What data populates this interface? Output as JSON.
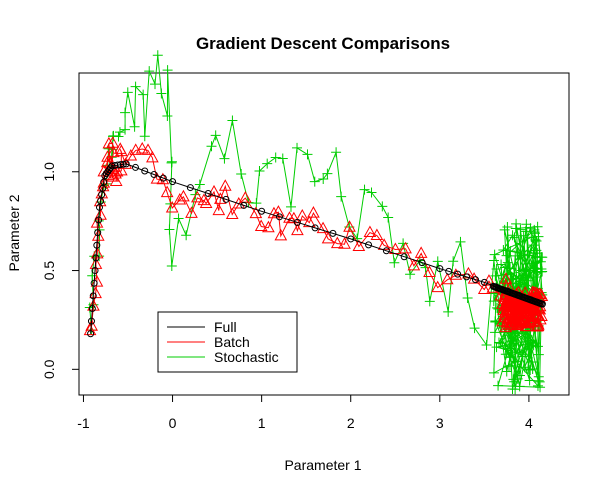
{
  "chart_data": {
    "type": "line",
    "title": "Gradient Descent Comparisons",
    "xlabel": "Parameter 1",
    "ylabel": "Parameter 2",
    "xlim": [
      -1.05,
      4.45
    ],
    "ylim": [
      -0.13,
      1.5
    ],
    "xticks": [
      -1,
      0,
      1,
      2,
      3,
      4
    ],
    "yticks": [
      0.0,
      0.5,
      1.0
    ],
    "ytick_labels": [
      "0.0",
      "0.5",
      "1.0"
    ],
    "legend": {
      "placement": "bottom-left"
    },
    "series": [
      {
        "name": "Full",
        "color": "#000000",
        "marker": "open-circle",
        "key_points": [
          {
            "x": -0.92,
            "y": 0.18
          },
          {
            "x": -0.87,
            "y": 0.5
          },
          {
            "x": -0.82,
            "y": 0.82
          },
          {
            "x": -0.76,
            "y": 0.98
          },
          {
            "x": -0.68,
            "y": 1.03
          },
          {
            "x": -0.52,
            "y": 1.04
          },
          {
            "x": 0.0,
            "y": 0.95
          },
          {
            "x": 1.0,
            "y": 0.8
          },
          {
            "x": 2.0,
            "y": 0.66
          },
          {
            "x": 3.0,
            "y": 0.51
          },
          {
            "x": 3.5,
            "y": 0.44
          },
          {
            "x": 4.15,
            "y": 0.33
          }
        ]
      },
      {
        "name": "Batch",
        "color": "#ff0000",
        "marker": "open-triangle",
        "key_points": [
          {
            "x": -0.92,
            "y": 0.18
          },
          {
            "x": -0.86,
            "y": 0.55
          },
          {
            "x": -0.8,
            "y": 0.82
          },
          {
            "x": -0.74,
            "y": 1.02
          },
          {
            "x": -0.69,
            "y": 1.12
          },
          {
            "x": -0.64,
            "y": 0.97
          },
          {
            "x": -0.57,
            "y": 1.08
          },
          {
            "x": -0.3,
            "y": 1.08
          },
          {
            "x": 0.0,
            "y": 0.88
          },
          {
            "x": 0.35,
            "y": 0.84
          },
          {
            "x": 0.6,
            "y": 0.86
          },
          {
            "x": 1.0,
            "y": 0.77
          },
          {
            "x": 1.3,
            "y": 0.7
          },
          {
            "x": 1.6,
            "y": 0.78
          },
          {
            "x": 2.0,
            "y": 0.65
          },
          {
            "x": 2.5,
            "y": 0.62
          },
          {
            "x": 3.0,
            "y": 0.48
          },
          {
            "x": 3.5,
            "y": 0.42
          },
          {
            "x": 3.8,
            "y": 0.38
          },
          {
            "x": 4.15,
            "y": 0.3
          }
        ]
      },
      {
        "name": "Stochastic",
        "color": "#00cd00",
        "marker": "plus",
        "key_points": [
          {
            "x": -0.92,
            "y": 0.18
          },
          {
            "x": -0.84,
            "y": 0.72
          },
          {
            "x": -0.72,
            "y": 1.08
          },
          {
            "x": -0.6,
            "y": 1.2
          },
          {
            "x": -0.35,
            "y": 1.38
          },
          {
            "x": -0.05,
            "y": 1.44
          },
          {
            "x": 0.0,
            "y": 0.68
          },
          {
            "x": 0.5,
            "y": 1.12
          },
          {
            "x": 1.0,
            "y": 0.9
          },
          {
            "x": 1.5,
            "y": 1.08
          },
          {
            "x": 2.0,
            "y": 0.8
          },
          {
            "x": 2.5,
            "y": 0.7
          },
          {
            "x": 3.0,
            "y": 0.5
          },
          {
            "x": 3.5,
            "y": 0.4
          },
          {
            "x": 4.0,
            "y": 0.35
          },
          {
            "x": 4.15,
            "y": 0.4
          }
        ]
      }
    ]
  }
}
